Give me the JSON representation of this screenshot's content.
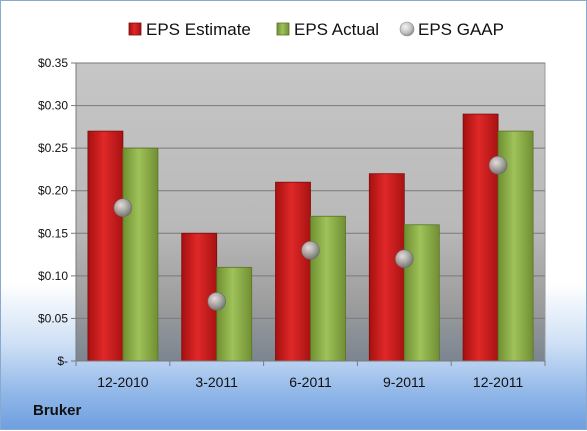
{
  "company": "Bruker",
  "chart_data": {
    "type": "bar",
    "categories": [
      "12-2010",
      "3-2011",
      "6-2011",
      "9-2011",
      "12-2011"
    ],
    "series": [
      {
        "name": "EPS Estimate",
        "values": [
          0.27,
          0.15,
          0.21,
          0.22,
          0.29
        ],
        "color": "#cc1a1a",
        "kind": "bar"
      },
      {
        "name": "EPS Actual",
        "values": [
          0.25,
          0.11,
          0.17,
          0.16,
          0.27
        ],
        "color": "#8fb04a",
        "kind": "bar"
      },
      {
        "name": "EPS GAAP",
        "values": [
          0.18,
          0.07,
          0.13,
          0.12,
          0.23
        ],
        "color": "#a9a9a9",
        "kind": "marker"
      }
    ],
    "ylim": [
      0,
      0.35
    ],
    "yticks": [
      0,
      0.05,
      0.1,
      0.15,
      0.2,
      0.25,
      0.3,
      0.35
    ],
    "ytick_labels": [
      "$-",
      "$0.05",
      "$0.10",
      "$0.15",
      "$0.20",
      "$0.25",
      "$0.30",
      "$0.35"
    ],
    "grid": true,
    "legend_position": "top"
  }
}
